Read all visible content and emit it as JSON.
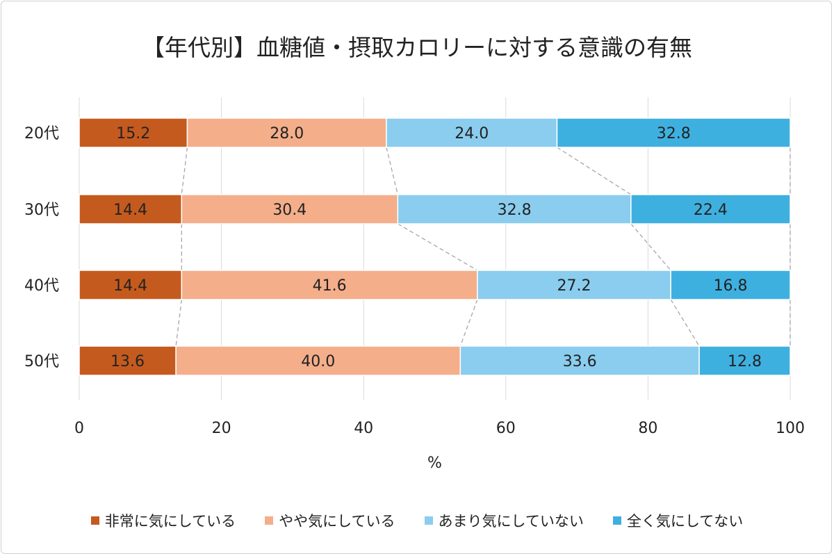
{
  "chart_data": {
    "type": "bar",
    "stacked": true,
    "orientation": "horizontal",
    "title": "【年代別】血糖値・摂取カロリーに対する意識の有無",
    "xlabel": "%",
    "ylabel": "",
    "xlim": [
      0,
      100
    ],
    "xticks": [
      "0",
      "20",
      "40",
      "60",
      "80",
      "100"
    ],
    "grid": true,
    "legend_position": "bottom",
    "categories": [
      "20代",
      "30代",
      "40代",
      "50代"
    ],
    "series": [
      {
        "name": "非常に気にしている",
        "color": "#C55A1E",
        "values": [
          15.2,
          14.4,
          14.4,
          13.6
        ]
      },
      {
        "name": "やや気にしている",
        "color": "#F4AE8A",
        "values": [
          28.0,
          30.4,
          41.6,
          40.0
        ]
      },
      {
        "name": "あまり気にしていない",
        "color": "#8ACDEE",
        "values": [
          24.0,
          32.8,
          27.2,
          33.6
        ]
      },
      {
        "name": "全く気にしてない",
        "color": "#3EB0E0",
        "values": [
          32.8,
          22.4,
          16.8,
          12.8
        ]
      }
    ]
  }
}
